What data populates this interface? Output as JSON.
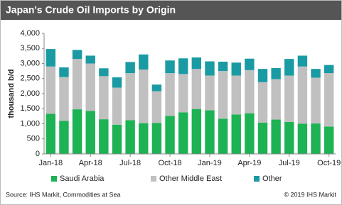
{
  "chart_data": {
    "type": "stacked_bar",
    "title": "Japan's Crude Oil Imports by Origin",
    "y_label": "thousand b/d",
    "categories": [
      "Jan-18",
      null,
      null,
      "Apr-18",
      null,
      null,
      "Jul-18",
      null,
      null,
      "Oct-18",
      null,
      null,
      "Jan-19",
      null,
      null,
      "Apr-19",
      null,
      null,
      "Jul-19",
      null,
      null,
      "Oct-19"
    ],
    "series": [
      {
        "name": "Saudi Arabia",
        "color": "#1db254",
        "values": [
          1330,
          1100,
          1480,
          1430,
          1150,
          970,
          1120,
          1020,
          1030,
          1260,
          1380,
          1490,
          1450,
          1170,
          1310,
          1350,
          1040,
          1140,
          1060,
          1000,
          1010,
          910
        ]
      },
      {
        "name": "Other Middle East",
        "color": "#c0c0c0",
        "values": [
          1570,
          1450,
          1670,
          1570,
          1430,
          1230,
          1560,
          1780,
          1050,
          1420,
          1270,
          1330,
          1150,
          1580,
          1290,
          1430,
          1340,
          1340,
          1540,
          1900,
          1520,
          1770
        ]
      },
      {
        "name": "Other",
        "color": "#1a9ba3",
        "values": [
          580,
          320,
          300,
          260,
          260,
          340,
          370,
          500,
          220,
          420,
          520,
          380,
          470,
          310,
          430,
          380,
          440,
          370,
          550,
          360,
          290,
          270
        ]
      }
    ],
    "ylim": [
      0,
      4000
    ],
    "yticks": [
      0,
      500,
      {
        "value": 1000,
        "label": "1,000"
      },
      {
        "value": 1500,
        "label": "1,500"
      },
      {
        "value": 2000,
        "label": "2,000"
      },
      {
        "value": 2500,
        "label": "2,500"
      },
      {
        "value": 3000,
        "label": "3,000"
      },
      {
        "value": 3500,
        "label": "3,500"
      },
      {
        "value": 4000,
        "label": "4,000"
      }
    ],
    "grid": false,
    "source": "Source: IHS Markit, Commodities at Sea",
    "copyright": "© 2019 IHS Markit"
  }
}
